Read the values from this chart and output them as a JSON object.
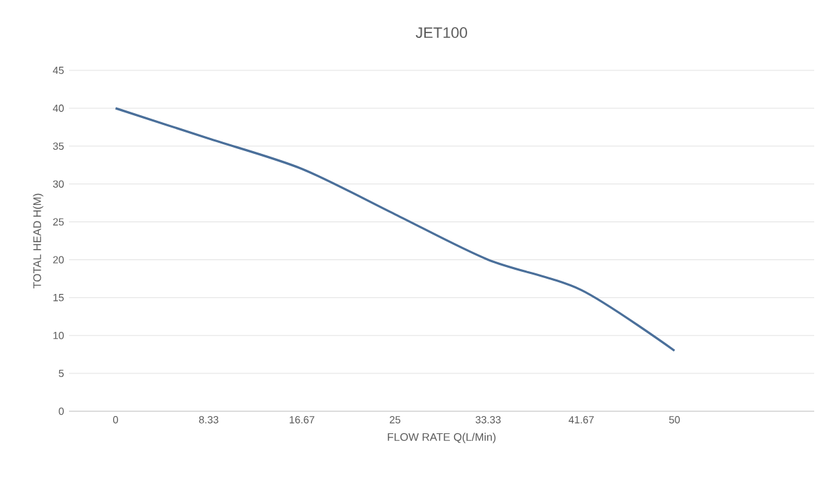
{
  "chart_data": {
    "type": "line",
    "title": "JET100",
    "xlabel": "FLOW RATE Q(L/Min)",
    "ylabel": "TOTAL HEAD H(M)",
    "categories": [
      "0",
      "8.33",
      "16.67",
      "25",
      "33.33",
      "41.67",
      "50",
      null
    ],
    "values": [
      40,
      36,
      32,
      26,
      20,
      16,
      8,
      null
    ],
    "color": "#4a6f9a",
    "ylim": [
      0,
      45
    ],
    "yticks": [
      0,
      5,
      10,
      15,
      20,
      25,
      30,
      35,
      40,
      45
    ],
    "grid": "y"
  }
}
